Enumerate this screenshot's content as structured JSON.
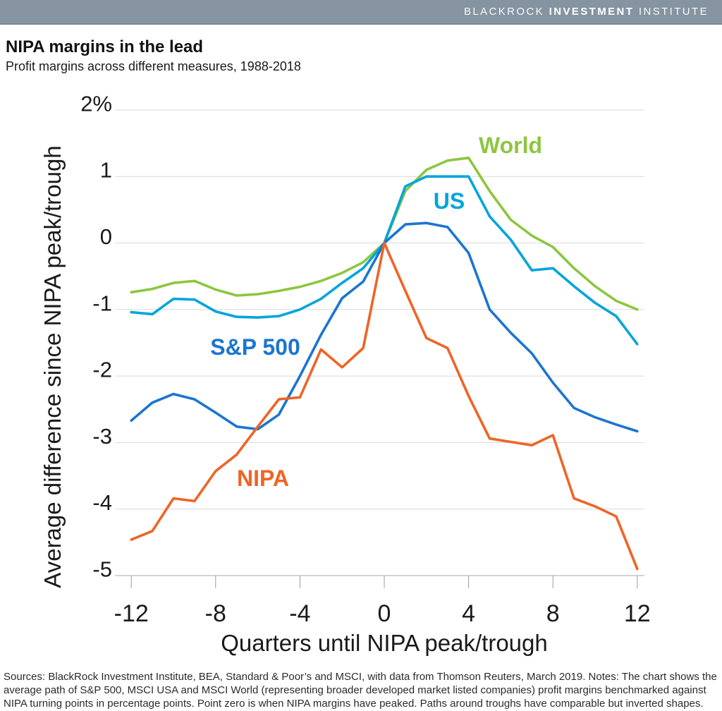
{
  "header": {
    "brand_light1": "BLACKROCK ",
    "brand_bold": "INVESTMENT",
    "brand_light2": " INSTITUTE",
    "bar_color": "#8694A1"
  },
  "title": "NIPA margins in the lead",
  "subtitle": "Profit margins across different measures, 1988-2018",
  "footer": "Sources: BlackRock Investment Institute, BEA, Standard & Poor’s and MSCI, with data from Thomson Reuters, March 2019. Notes: The chart shows the average path of S&P 500, MSCI USA and MSCI World (representing broader developed market listed companies) profit margins benchmarked against NIPA turning points in percentage points. Point zero is when NIPA margins have peaked. Paths around troughs have comparable but inverted shapes.",
  "chart_data": {
    "type": "line",
    "title": "NIPA margins in the lead",
    "xlabel": "Quarters until NIPA peak/trough",
    "ylabel": "Average difference since NIPA peak/trough",
    "xlim": [
      -12,
      12
    ],
    "ylim": [
      -5,
      2
    ],
    "grid": true,
    "legend_position": "inline-labels",
    "x": [
      -12,
      -11,
      -10,
      -9,
      -8,
      -7,
      -6,
      -5,
      -4,
      -3,
      -2,
      -1,
      0,
      1,
      2,
      3,
      4,
      5,
      6,
      7,
      8,
      9,
      10,
      11,
      12
    ],
    "xticks": [
      -12,
      -8,
      -4,
      0,
      4,
      8,
      12
    ],
    "yticks": [
      {
        "v": 2,
        "label": "2%"
      },
      {
        "v": 1,
        "label": "1"
      },
      {
        "v": 0,
        "label": "0"
      },
      {
        "v": -1,
        "label": "-1"
      },
      {
        "v": -2,
        "label": "-2"
      },
      {
        "v": -3,
        "label": "-3"
      },
      {
        "v": -4,
        "label": "-4"
      },
      {
        "v": -5,
        "label": "-5"
      }
    ],
    "series": [
      {
        "name": "World",
        "color": "#8CC63F",
        "values": [
          -0.74,
          -0.69,
          -0.6,
          -0.57,
          -0.7,
          -0.79,
          -0.77,
          -0.72,
          -0.66,
          -0.57,
          -0.45,
          -0.29,
          0.0,
          0.78,
          1.1,
          1.24,
          1.28,
          0.78,
          0.35,
          0.11,
          -0.06,
          -0.38,
          -0.65,
          -0.87,
          -1.0
        ]
      },
      {
        "name": "US",
        "color": "#00A5DA",
        "values": [
          -1.04,
          -1.07,
          -0.84,
          -0.85,
          -1.03,
          -1.11,
          -1.12,
          -1.1,
          -1.0,
          -0.84,
          -0.6,
          -0.38,
          0.0,
          0.85,
          1.0,
          1.0,
          1.0,
          0.4,
          0.05,
          -0.41,
          -0.38,
          -0.65,
          -0.9,
          -1.1,
          -1.52
        ]
      },
      {
        "name": "S&P 500",
        "color": "#1B75D1",
        "values": [
          -2.67,
          -2.4,
          -2.27,
          -2.35,
          -2.55,
          -2.76,
          -2.8,
          -2.58,
          -2.0,
          -1.38,
          -0.83,
          -0.58,
          0.0,
          0.28,
          0.3,
          0.24,
          -0.15,
          -1.0,
          -1.35,
          -1.66,
          -2.1,
          -2.48,
          -2.62,
          -2.73,
          -2.83
        ]
      },
      {
        "name": "NIPA",
        "color": "#EF6425",
        "values": [
          -4.46,
          -4.33,
          -3.84,
          -3.88,
          -3.43,
          -3.18,
          -2.76,
          -2.35,
          -2.32,
          -1.6,
          -1.87,
          -1.58,
          0.0,
          -0.72,
          -1.43,
          -1.58,
          -2.3,
          -2.94,
          -2.99,
          -3.04,
          -2.89,
          -3.84,
          -3.96,
          -4.11,
          -4.9
        ]
      }
    ],
    "colors": {
      "grid": "#D9D9D9",
      "axis_line": "#C6C6C6",
      "tick": "#9B9B9B",
      "text": "#1A1A1A"
    }
  }
}
